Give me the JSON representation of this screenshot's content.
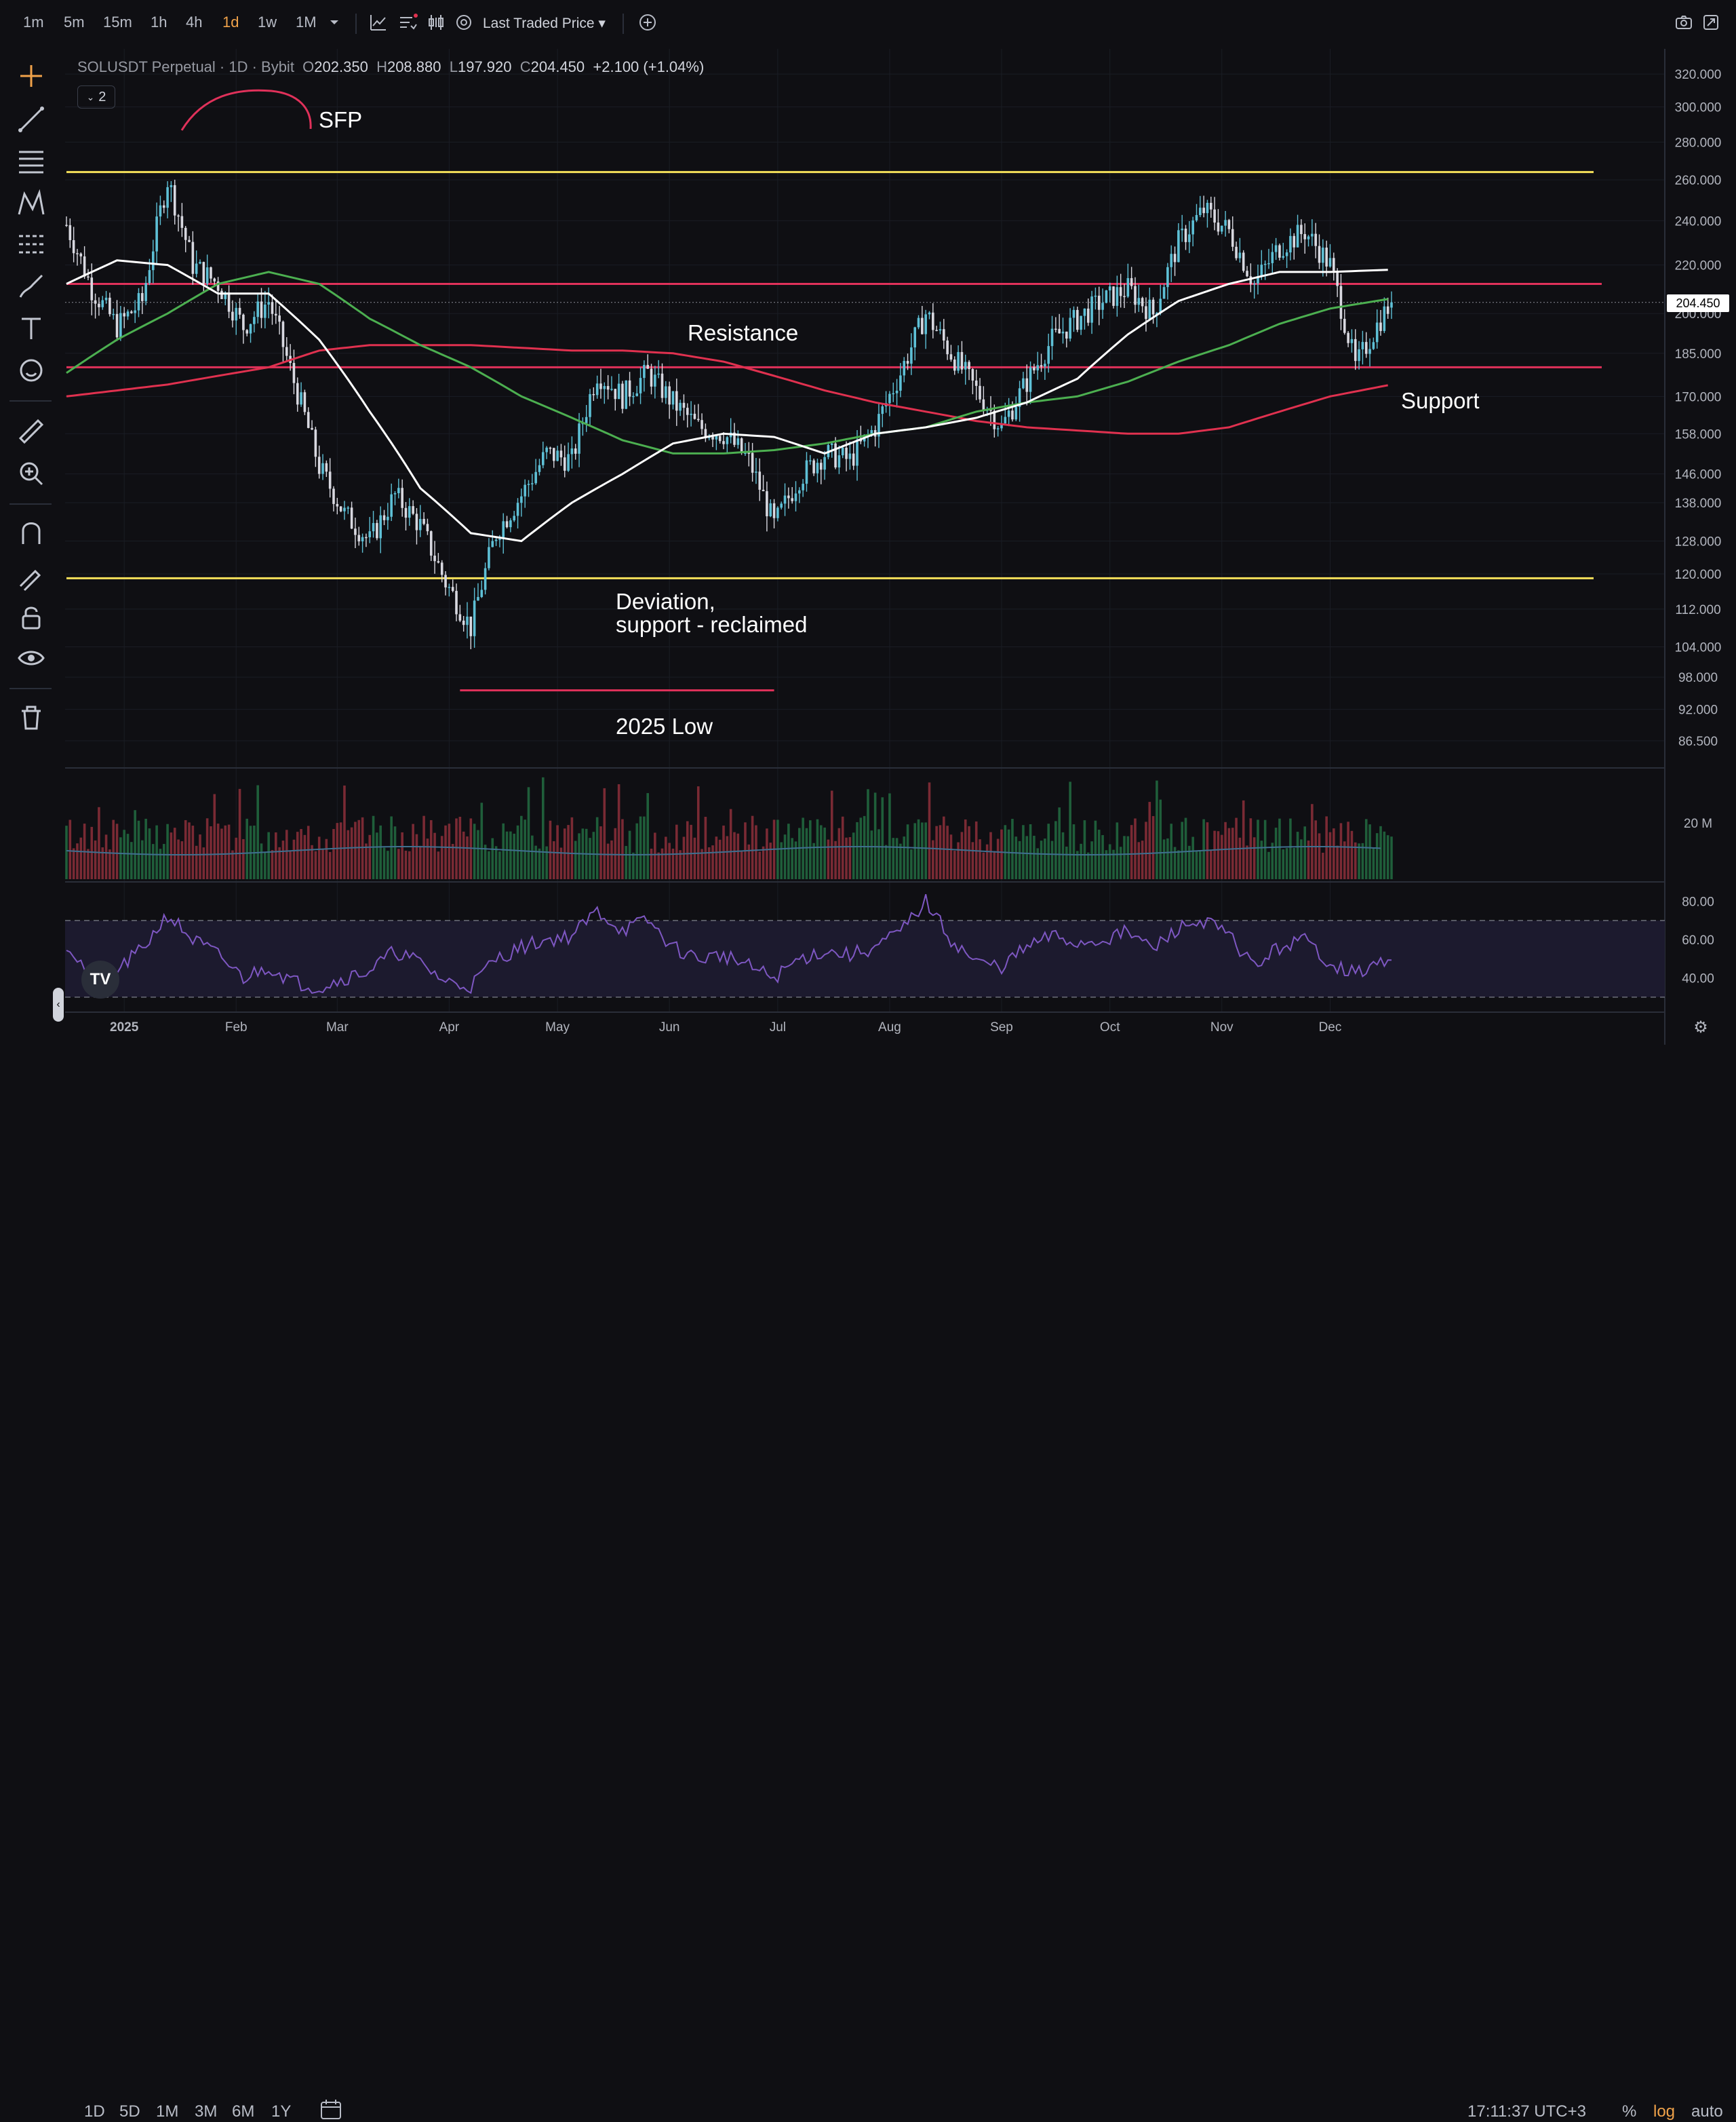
{
  "toolbar": {
    "timeframes": [
      "1m",
      "5m",
      "15m",
      "1h",
      "4h",
      "1d",
      "1w",
      "1M"
    ],
    "active_timeframe": "1d",
    "price_source": "Last Traded Price"
  },
  "legend": {
    "symbol": "SOLUSDT Perpetual · 1D · Bybit",
    "open_label": "O",
    "open": "202.350",
    "high_label": "H",
    "high": "208.880",
    "low_label": "L",
    "low": "197.920",
    "close_label": "C",
    "close": "204.450",
    "change": "+2.100 (+1.04%)",
    "indicator_count": "2"
  },
  "bottom": {
    "ranges": [
      "1D",
      "5D",
      "1M",
      "3M",
      "6M",
      "1Y"
    ],
    "clock": "17:11:37 UTC+3",
    "percent": "%",
    "log": "log",
    "auto": "auto"
  },
  "colors": {
    "up": "#5ec0d6",
    "down": "#d8d8e0",
    "ma_fast": "#ffffff",
    "ma_mid": "#4caf50",
    "ma_slow": "#e0314f",
    "level_yellow": "#f5e05a",
    "level_pink": "#e0315a",
    "rsi": "#7e57c2"
  },
  "chart_data": {
    "type": "line",
    "scale": "log",
    "y_ticks": [
      "320.000",
      "300.000",
      "280.000",
      "260.000",
      "240.000",
      "220.000",
      "200.000",
      "185.000",
      "170.000",
      "158.000",
      "146.000",
      "138.000",
      "128.000",
      "120.000",
      "112.000",
      "104.000",
      "98.000",
      "92.000",
      "86.500"
    ],
    "current_price": "204.450",
    "x_ticks": [
      "2025",
      "Feb",
      "Mar",
      "Apr",
      "May",
      "Jun",
      "Jul",
      "Aug",
      "Sep",
      "Oct",
      "Nov",
      "Dec"
    ],
    "x_start": "2024-12-16",
    "price_series": [
      [
        0,
        238
      ],
      [
        7,
        210
      ],
      [
        14,
        195
      ],
      [
        21,
        205
      ],
      [
        28,
        260
      ],
      [
        35,
        220
      ],
      [
        42,
        212
      ],
      [
        49,
        195
      ],
      [
        56,
        205
      ],
      [
        63,
        175
      ],
      [
        70,
        148
      ],
      [
        77,
        135
      ],
      [
        84,
        128
      ],
      [
        91,
        140
      ],
      [
        98,
        132
      ],
      [
        105,
        118
      ],
      [
        112,
        108
      ],
      [
        119,
        130
      ],
      [
        126,
        140
      ],
      [
        133,
        152
      ],
      [
        140,
        150
      ],
      [
        147,
        178
      ],
      [
        154,
        170
      ],
      [
        161,
        178
      ],
      [
        168,
        168
      ],
      [
        175,
        160
      ],
      [
        182,
        158
      ],
      [
        189,
        150
      ],
      [
        196,
        132
      ],
      [
        203,
        145
      ],
      [
        210,
        152
      ],
      [
        217,
        150
      ],
      [
        224,
        160
      ],
      [
        231,
        178
      ],
      [
        238,
        200
      ],
      [
        245,
        185
      ],
      [
        252,
        172
      ],
      [
        259,
        160
      ],
      [
        266,
        175
      ],
      [
        273,
        190
      ],
      [
        280,
        198
      ],
      [
        287,
        205
      ],
      [
        294,
        210
      ],
      [
        301,
        200
      ],
      [
        308,
        230
      ],
      [
        315,
        245
      ],
      [
        322,
        235
      ],
      [
        329,
        212
      ],
      [
        336,
        228
      ],
      [
        343,
        235
      ],
      [
        350,
        220
      ],
      [
        357,
        180
      ],
      [
        364,
        198
      ],
      [
        367,
        204.45
      ]
    ],
    "ma_fast": [
      [
        0,
        212
      ],
      [
        14,
        222
      ],
      [
        28,
        220
      ],
      [
        42,
        208
      ],
      [
        56,
        208
      ],
      [
        70,
        190
      ],
      [
        84,
        165
      ],
      [
        98,
        142
      ],
      [
        112,
        130
      ],
      [
        126,
        128
      ],
      [
        140,
        138
      ],
      [
        154,
        146
      ],
      [
        168,
        155
      ],
      [
        182,
        158
      ],
      [
        196,
        157
      ],
      [
        210,
        152
      ],
      [
        224,
        158
      ],
      [
        238,
        160
      ],
      [
        252,
        163
      ],
      [
        266,
        168
      ],
      [
        280,
        176
      ],
      [
        294,
        192
      ],
      [
        308,
        205
      ],
      [
        322,
        212
      ],
      [
        336,
        217
      ],
      [
        350,
        217
      ],
      [
        367,
        218
      ]
    ],
    "ma_mid": [
      [
        0,
        178
      ],
      [
        14,
        190
      ],
      [
        28,
        200
      ],
      [
        42,
        212
      ],
      [
        56,
        217
      ],
      [
        70,
        212
      ],
      [
        84,
        198
      ],
      [
        98,
        188
      ],
      [
        112,
        180
      ],
      [
        126,
        170
      ],
      [
        140,
        163
      ],
      [
        154,
        156
      ],
      [
        168,
        152
      ],
      [
        182,
        152
      ],
      [
        196,
        153
      ],
      [
        210,
        155
      ],
      [
        224,
        158
      ],
      [
        238,
        160
      ],
      [
        252,
        165
      ],
      [
        266,
        168
      ],
      [
        280,
        170
      ],
      [
        294,
        175
      ],
      [
        308,
        182
      ],
      [
        322,
        188
      ],
      [
        336,
        196
      ],
      [
        350,
        202
      ],
      [
        367,
        206
      ]
    ],
    "ma_slow": [
      [
        0,
        170
      ],
      [
        28,
        174
      ],
      [
        56,
        180
      ],
      [
        70,
        186
      ],
      [
        84,
        188
      ],
      [
        112,
        188
      ],
      [
        126,
        187
      ],
      [
        140,
        186
      ],
      [
        154,
        186
      ],
      [
        168,
        185
      ],
      [
        182,
        182
      ],
      [
        196,
        177
      ],
      [
        210,
        172
      ],
      [
        224,
        168
      ],
      [
        238,
        165
      ],
      [
        252,
        162
      ],
      [
        266,
        160
      ],
      [
        280,
        159
      ],
      [
        294,
        158
      ],
      [
        308,
        158
      ],
      [
        322,
        160
      ],
      [
        336,
        165
      ],
      [
        350,
        170
      ],
      [
        367,
        174
      ]
    ],
    "levels": [
      {
        "price": 264,
        "color": "yellow"
      },
      {
        "price": 212,
        "color": "pink"
      },
      {
        "price": 180,
        "color": "pink"
      },
      {
        "price": 119,
        "color": "yellow"
      }
    ],
    "low_2025": {
      "price": 95.5,
      "from_day": 109,
      "to_day": 196
    },
    "annotations": [
      "SFP",
      "Resistance",
      "Support",
      "Deviation,",
      "support - reclaimed",
      "2025 Low"
    ],
    "volume_tick": "20 M",
    "rsi_ticks": [
      "80.00",
      "60.00",
      "40.00"
    ],
    "rsi_series": [
      [
        0,
        58
      ],
      [
        7,
        40
      ],
      [
        14,
        44
      ],
      [
        21,
        55
      ],
      [
        28,
        73
      ],
      [
        35,
        60
      ],
      [
        42,
        52
      ],
      [
        49,
        40
      ],
      [
        56,
        46
      ],
      [
        63,
        38
      ],
      [
        70,
        35
      ],
      [
        77,
        40
      ],
      [
        84,
        44
      ],
      [
        91,
        54
      ],
      [
        98,
        48
      ],
      [
        105,
        38
      ],
      [
        112,
        36
      ],
      [
        119,
        50
      ],
      [
        126,
        56
      ],
      [
        133,
        60
      ],
      [
        140,
        62
      ],
      [
        147,
        75
      ],
      [
        154,
        65
      ],
      [
        161,
        70
      ],
      [
        168,
        56
      ],
      [
        175,
        50
      ],
      [
        182,
        52
      ],
      [
        189,
        46
      ],
      [
        196,
        40
      ],
      [
        203,
        50
      ],
      [
        210,
        54
      ],
      [
        217,
        52
      ],
      [
        224,
        56
      ],
      [
        231,
        64
      ],
      [
        238,
        80
      ],
      [
        245,
        60
      ],
      [
        252,
        48
      ],
      [
        259,
        46
      ],
      [
        266,
        56
      ],
      [
        273,
        62
      ],
      [
        280,
        58
      ],
      [
        287,
        60
      ],
      [
        294,
        64
      ],
      [
        301,
        55
      ],
      [
        308,
        66
      ],
      [
        315,
        70
      ],
      [
        322,
        62
      ],
      [
        329,
        46
      ],
      [
        336,
        56
      ],
      [
        343,
        60
      ],
      [
        350,
        48
      ],
      [
        357,
        42
      ],
      [
        364,
        48
      ],
      [
        367,
        47
      ]
    ]
  }
}
